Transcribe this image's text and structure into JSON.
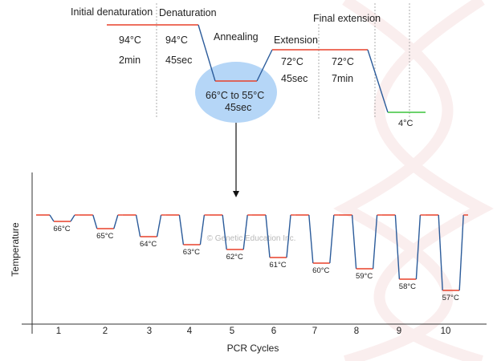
{
  "colors": {
    "hold": "#e8402a",
    "ramp": "#2b5b9a",
    "cool": "#3cc43c",
    "annealing_bubble": "#b5d6f7"
  },
  "top": {
    "initial": {
      "label": "Initial denaturation",
      "temp": "94°C",
      "time": "2min"
    },
    "denaturation": {
      "label": "Denaturation",
      "temp": "94°C",
      "time": "45sec"
    },
    "annealing": {
      "label": "Annealing",
      "temp": "66°C to 55°C",
      "time": "45sec"
    },
    "extension": {
      "label": "Extension",
      "temp": "72°C",
      "time": "45sec"
    },
    "final": {
      "label": "Final extension",
      "temp": "72°C",
      "time": "7min"
    },
    "hold": {
      "temp": "4°C"
    }
  },
  "watermark": "© Genetic Education Inc.",
  "chart": {
    "xlabel": "PCR Cycles",
    "ylabel": "Temperature",
    "cycles": [
      "1",
      "2",
      "3",
      "4",
      "5",
      "6",
      "7",
      "8",
      "9",
      "10"
    ],
    "annealing_temps": [
      "66°C",
      "65°C",
      "64°C",
      "63°C",
      "62°C",
      "61°C",
      "60°C",
      "59°C",
      "58°C",
      "57°C"
    ]
  }
}
